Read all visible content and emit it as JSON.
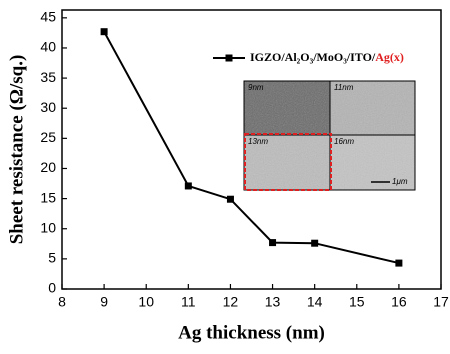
{
  "chart_data": {
    "type": "line",
    "x_label": "Ag thickness (nm)",
    "y_label": "Sheet resistance (Ω/sq.)",
    "x": [
      9,
      11,
      12,
      13,
      14,
      16
    ],
    "series": [
      {
        "name": "IGZO/Al₂O₃/MoO₃/ITO/Ag(x)",
        "color": "#000000",
        "values": [
          42.7,
          17.1,
          14.9,
          7.7,
          7.6,
          4.3
        ]
      }
    ],
    "xlim": [
      8,
      17
    ],
    "xticks": [
      8,
      9,
      10,
      11,
      12,
      13,
      14,
      15,
      16,
      17
    ],
    "ylim": [
      0,
      46.3
    ],
    "yticks": [
      0,
      5,
      10,
      15,
      20,
      25,
      30,
      35,
      40,
      45
    ],
    "legend_highlight_color": "#e02020",
    "inset": {
      "labels": [
        "9nm",
        "11nm",
        "13nm",
        "16nm"
      ],
      "scale_bar": "1μm"
    }
  }
}
